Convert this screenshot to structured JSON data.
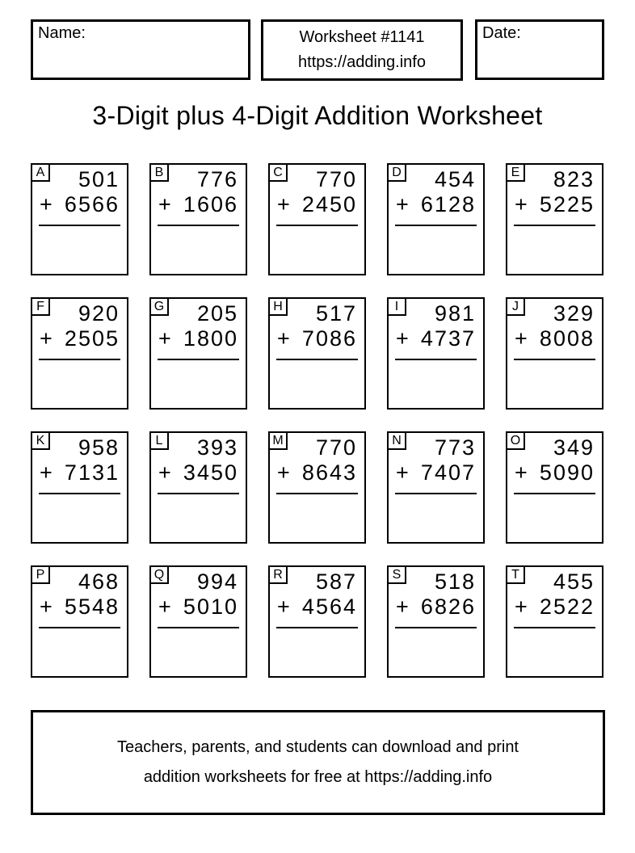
{
  "header": {
    "name_label": "Name:",
    "date_label": "Date:",
    "worksheet_number": "Worksheet #1141",
    "worksheet_url": "https://adding.info"
  },
  "title": "3-Digit plus 4-Digit Addition Worksheet",
  "plus_sign": "+",
  "problems": [
    {
      "label": "A",
      "addend1": "501",
      "addend2": "6566"
    },
    {
      "label": "B",
      "addend1": "776",
      "addend2": "1606"
    },
    {
      "label": "C",
      "addend1": "770",
      "addend2": "2450"
    },
    {
      "label": "D",
      "addend1": "454",
      "addend2": "6128"
    },
    {
      "label": "E",
      "addend1": "823",
      "addend2": "5225"
    },
    {
      "label": "F",
      "addend1": "920",
      "addend2": "2505"
    },
    {
      "label": "G",
      "addend1": "205",
      "addend2": "1800"
    },
    {
      "label": "H",
      "addend1": "517",
      "addend2": "7086"
    },
    {
      "label": "I",
      "addend1": "981",
      "addend2": "4737"
    },
    {
      "label": "J",
      "addend1": "329",
      "addend2": "8008"
    },
    {
      "label": "K",
      "addend1": "958",
      "addend2": "7131"
    },
    {
      "label": "L",
      "addend1": "393",
      "addend2": "3450"
    },
    {
      "label": "M",
      "addend1": "770",
      "addend2": "8643"
    },
    {
      "label": "N",
      "addend1": "773",
      "addend2": "7407"
    },
    {
      "label": "O",
      "addend1": "349",
      "addend2": "5090"
    },
    {
      "label": "P",
      "addend1": "468",
      "addend2": "5548"
    },
    {
      "label": "Q",
      "addend1": "994",
      "addend2": "5010"
    },
    {
      "label": "R",
      "addend1": "587",
      "addend2": "4564"
    },
    {
      "label": "S",
      "addend1": "518",
      "addend2": "6826"
    },
    {
      "label": "T",
      "addend1": "455",
      "addend2": "2522"
    }
  ],
  "footer": {
    "line1": "Teachers, parents, and students can download and print",
    "line2": "addition worksheets for free at https://adding.info"
  },
  "colors": {
    "ink": "#000000",
    "paper": "#ffffff"
  }
}
